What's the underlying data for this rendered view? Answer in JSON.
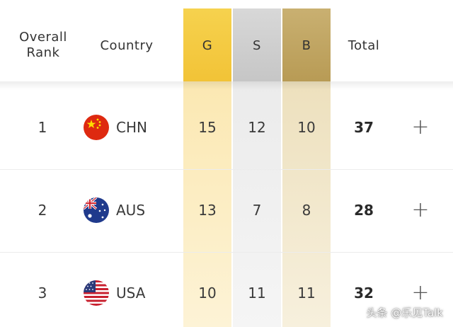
{
  "header": {
    "rank_line1": "Overall",
    "rank_line2": "Rank",
    "country": "Country",
    "gold": "G",
    "silver": "S",
    "bronze": "B",
    "total": "Total"
  },
  "colors": {
    "gold": "#f2c337",
    "silver": "#c9c9c9",
    "bronze": "#b89b55"
  },
  "rows": [
    {
      "rank": "1",
      "flag_icon": "china-flag-icon",
      "code": "CHN",
      "gold": "15",
      "silver": "12",
      "bronze": "10",
      "total": "37",
      "expand": "+"
    },
    {
      "rank": "2",
      "flag_icon": "australia-flag-icon",
      "code": "AUS",
      "gold": "13",
      "silver": "7",
      "bronze": "8",
      "total": "28",
      "expand": "+"
    },
    {
      "rank": "3",
      "flag_icon": "usa-flag-icon",
      "code": "USA",
      "gold": "10",
      "silver": "11",
      "bronze": "11",
      "total": "32",
      "expand": "+"
    }
  ],
  "watermark": "头条 @乐见Talk"
}
